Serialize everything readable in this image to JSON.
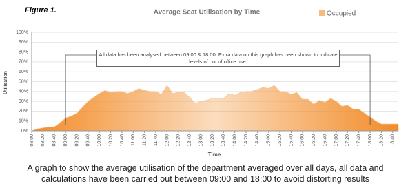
{
  "figure_label": "Figure 1.",
  "chart_data": {
    "type": "area",
    "title": "Average Seat Utilisation by Time",
    "x_label": "Time",
    "y_label": "Utilisation",
    "categories": [
      "08:00",
      null,
      "08:20",
      null,
      "08:40",
      null,
      "09:00",
      null,
      "09:20",
      null,
      "09:40",
      null,
      "10:00",
      null,
      "10:20",
      null,
      "10:40",
      null,
      "11:00",
      null,
      "11:20",
      null,
      "11:40",
      null,
      "12:00",
      null,
      "12:20",
      null,
      "12:40",
      null,
      "13:00",
      null,
      "13:20",
      null,
      "13:40",
      null,
      "14:00",
      null,
      "14:20",
      null,
      "14:40",
      null,
      "15:00",
      null,
      "15:20",
      null,
      "15:40",
      null,
      "16:00",
      null,
      "16:20",
      null,
      "16:40",
      null,
      "17:00",
      null,
      "17:20",
      null,
      "17:40",
      null,
      "18:00",
      null,
      "18:20",
      null,
      "18:40",
      null
    ],
    "series": [
      {
        "name": "Occupied",
        "color": "#f28c28",
        "values": [
          0,
          2,
          3,
          4,
          4,
          8,
          13,
          15,
          18,
          24,
          30,
          34,
          38,
          41,
          39,
          40,
          40,
          38,
          40,
          43,
          41,
          40,
          40,
          37,
          46,
          38,
          39,
          39,
          34,
          28,
          30,
          31,
          33,
          33,
          33,
          38,
          36,
          39,
          40,
          40,
          42,
          44,
          43,
          46,
          40,
          40,
          37,
          39,
          32,
          32,
          27,
          31,
          29,
          33,
          30,
          25,
          26,
          22,
          22,
          18,
          14,
          10,
          7,
          7,
          7,
          7
        ]
      }
    ],
    "ylim": [
      0,
      100
    ],
    "yticks": [
      {
        "value": 0,
        "label": "0%"
      },
      {
        "value": 10,
        "label": "10%"
      },
      {
        "value": 20,
        "label": "20%"
      },
      {
        "value": 30,
        "label": "30%"
      },
      {
        "value": 40,
        "label": "40%"
      },
      {
        "value": 50,
        "label": "50%"
      },
      {
        "value": 60,
        "label": "60%"
      },
      {
        "value": 70,
        "label": "70%"
      },
      {
        "value": 80,
        "label": "80%"
      },
      {
        "value": 90,
        "label": "90%"
      },
      {
        "value": 100,
        "label": "100%"
      }
    ],
    "grid": true,
    "annotation": {
      "text": "All data has been analysed between 09:00 & 18:00. Extra data on this graph has been shown to indicate levels of out of office use.",
      "from": "09:00",
      "to": "18:00"
    }
  },
  "caption": "A graph to show the average utilisation of the department averaged over all days, all data and calculations have been carried out between 09:00 and 18:00 to avoid distorting results"
}
